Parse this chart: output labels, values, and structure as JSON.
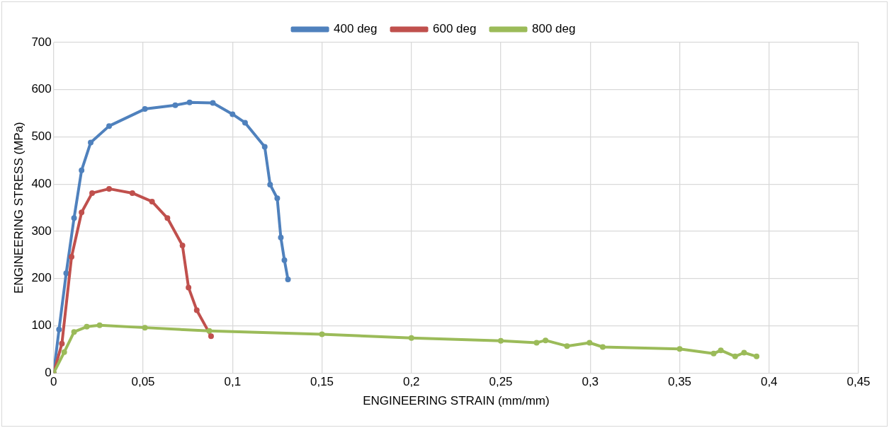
{
  "chart_data": {
    "type": "line",
    "xlabel": "ENGINEERING STRAIN (mm/mm)",
    "ylabel": "ENGINEERING STRESS (MPa)",
    "legend": "top",
    "grid": true,
    "marker": "circle",
    "line_style": "solid",
    "xlim": [
      0,
      0.45
    ],
    "ylim": [
      0,
      700
    ],
    "xticks": [
      0,
      {
        "value": 0.05,
        "label": "0,05"
      },
      {
        "value": 0.1,
        "label": "0,1"
      },
      {
        "value": 0.15,
        "label": "0,15"
      },
      {
        "value": 0.2,
        "label": "0,2"
      },
      {
        "value": 0.25,
        "label": "0,25"
      },
      {
        "value": 0.3,
        "label": "0,3"
      },
      {
        "value": 0.35,
        "label": "0,35"
      },
      {
        "value": 0.4,
        "label": "0,4"
      },
      {
        "value": 0.45,
        "label": "0,45"
      }
    ],
    "yticks": [
      0,
      100,
      200,
      300,
      400,
      500,
      600,
      700
    ],
    "series": [
      {
        "name": "400 deg",
        "color": "#4f81bd",
        "x": [
          0,
          0.003,
          0.007,
          0.0114,
          0.0156,
          0.0207,
          0.031,
          0.051,
          0.068,
          0.076,
          0.089,
          0.1,
          0.107,
          0.118,
          0.121,
          0.125,
          0.127,
          0.129,
          0.131
        ],
        "values": [
          0,
          92,
          211,
          328,
          429,
          488,
          523,
          559,
          567,
          573,
          572,
          548,
          530,
          479,
          399,
          370,
          287,
          239,
          198
        ]
      },
      {
        "name": "600 deg",
        "color": "#c0504d",
        "x": [
          0,
          0.0046,
          0.01,
          0.0156,
          0.0215,
          0.031,
          0.044,
          0.055,
          0.0636,
          0.072,
          0.0754,
          0.08,
          0.088
        ],
        "values": [
          0,
          62,
          246,
          340,
          381,
          390,
          381,
          363,
          328,
          270,
          181,
          133,
          78
        ]
      },
      {
        "name": "800 deg",
        "color": "#9bbb59",
        "x": [
          0,
          0.0059,
          0.0114,
          0.0185,
          0.0257,
          0.051,
          0.087,
          0.15,
          0.2,
          0.25,
          0.27,
          0.275,
          0.287,
          0.2996,
          0.307,
          0.35,
          0.369,
          0.373,
          0.381,
          0.386,
          0.393
        ],
        "values": [
          0,
          44,
          87,
          98,
          101,
          96,
          89,
          82,
          74,
          68,
          64,
          69,
          57,
          64,
          55,
          51,
          41,
          48,
          35,
          43,
          35
        ]
      }
    ]
  }
}
